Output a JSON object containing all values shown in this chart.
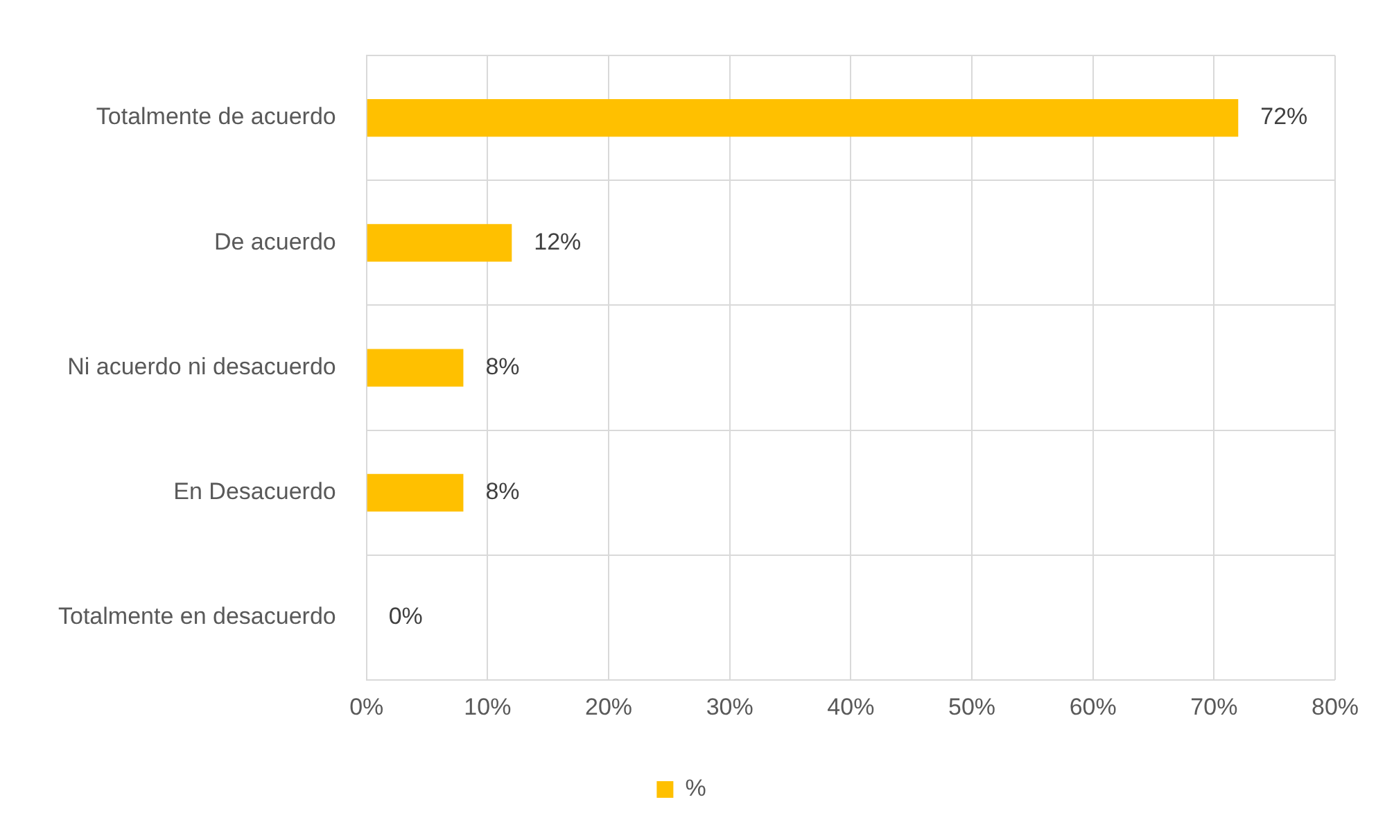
{
  "chart_data": {
    "type": "bar",
    "orientation": "horizontal",
    "categories": [
      "Totalmente de acuerdo",
      "De acuerdo",
      "Ni acuerdo ni desacuerdo",
      "En Desacuerdo",
      "Totalmente en desacuerdo"
    ],
    "series": [
      {
        "name": "%",
        "color": "#ffc000",
        "values": [
          72,
          12,
          8,
          8,
          0
        ],
        "value_labels": [
          "72%",
          "12%",
          "8%",
          "8%",
          "0%"
        ]
      }
    ],
    "xlim": [
      0,
      80
    ],
    "xticks": [
      {
        "value": 0,
        "label": "0%"
      },
      {
        "value": 10,
        "label": "10%"
      },
      {
        "value": 20,
        "label": "20%"
      },
      {
        "value": 30,
        "label": "30%"
      },
      {
        "value": 40,
        "label": "40%"
      },
      {
        "value": 50,
        "label": "50%"
      },
      {
        "value": 60,
        "label": "60%"
      },
      {
        "value": 70,
        "label": "70%"
      },
      {
        "value": 80,
        "label": "80%"
      }
    ],
    "grid": true,
    "legend": "bottom"
  }
}
